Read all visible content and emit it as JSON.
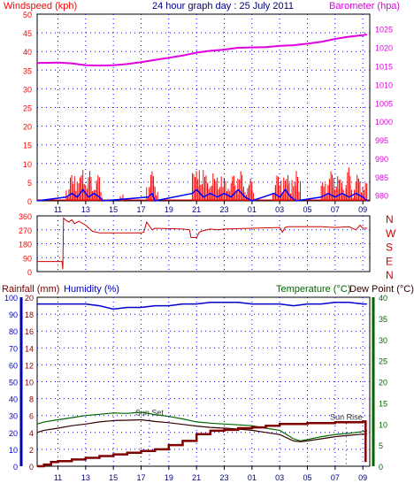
{
  "colors": {
    "wind": "#ff0000",
    "gust_dir": "#cc0000",
    "barometer": "#e000e0",
    "title": "#000080",
    "rain": "#800000",
    "humidity": "#0000cc",
    "temperature": "#006600",
    "dew": "#330000",
    "grid": "#0000ff",
    "dir_letters": "#cc0000",
    "humidity_axis_bar": "#0000aa",
    "temp_axis_bar": "#006600"
  },
  "chart_data": [
    {
      "type": "line",
      "title": "24 hour graph day : 25 July 2011",
      "left_label": "Windspeed (kph)",
      "right_label": "Barometer (hpa)",
      "x_ticks": [
        "11",
        "13",
        "15",
        "17",
        "19",
        "21",
        "23",
        "01",
        "03",
        "05",
        "07",
        "09"
      ],
      "y_left_ticks": [
        0,
        5,
        10,
        15,
        20,
        25,
        30,
        35,
        40,
        45,
        50
      ],
      "ylim_left": [
        0,
        50
      ],
      "y_right_ticks": [
        980,
        985,
        990,
        995,
        1000,
        1005,
        1010,
        1015,
        1020,
        1025
      ],
      "ylim_right": [
        978.5,
        1029
      ],
      "x_range_hours": [
        9.5,
        33.5
      ],
      "grid": true,
      "series": [
        {
          "name": "Barometer (hpa)",
          "axis": "right",
          "x": [
            9.5,
            11,
            12,
            13,
            14,
            15,
            16,
            17,
            18,
            19,
            20,
            21,
            22,
            23,
            24,
            25,
            26,
            27,
            28,
            29,
            30,
            31,
            32,
            33,
            33.3
          ],
          "values": [
            1015.8,
            1015.9,
            1015.7,
            1015.2,
            1015.1,
            1015.2,
            1015.5,
            1016.0,
            1016.6,
            1017.2,
            1017.8,
            1018.6,
            1019.1,
            1019.4,
            1019.9,
            1020.0,
            1020.1,
            1020.4,
            1020.6,
            1021.0,
            1021.5,
            1022.3,
            1022.9,
            1023.3,
            1023.5
          ]
        },
        {
          "name": "Windspeed (kph)",
          "axis": "left",
          "x": [
            9.5,
            11.4,
            11.6,
            11.8,
            12.0,
            12.2,
            12.4,
            12.6,
            12.8,
            13.0,
            13.2,
            13.4,
            13.6,
            13.8,
            14.0,
            14.2,
            15.5,
            15.7,
            17.4,
            17.6,
            17.8,
            18.0,
            18.2,
            20.6,
            20.7,
            20.8,
            21.0,
            21.2,
            21.5,
            21.8,
            22.0,
            22.2,
            22.5,
            22.8,
            23.0,
            23.3,
            23.6,
            24.0,
            24.4,
            24.8,
            25.0,
            25.2,
            26.5,
            26.7,
            26.9,
            27.1,
            27.3,
            27.6,
            27.9,
            28.2,
            28.5,
            30.0,
            30.3,
            30.6,
            30.9,
            31.2,
            31.5,
            31.8,
            32.1,
            32.4,
            32.7,
            33.0,
            33.3
          ],
          "values": [
            0,
            0,
            4,
            7,
            5,
            8,
            6,
            7,
            9,
            5,
            8,
            4,
            6,
            7,
            3,
            0,
            2,
            0,
            5,
            8,
            7,
            4,
            0,
            0,
            15,
            8,
            6,
            9,
            7,
            5,
            8,
            6,
            7,
            4,
            6,
            5,
            7,
            8,
            4,
            6,
            3,
            0,
            4,
            7,
            5,
            8,
            6,
            7,
            5,
            8,
            0,
            5,
            6,
            8,
            7,
            6,
            5,
            9,
            4,
            7,
            6,
            5,
            3
          ]
        },
        {
          "name": "Wind average (kph)",
          "axis": "left",
          "x": [
            9.5,
            11.6,
            12.0,
            12.4,
            12.8,
            13.2,
            13.6,
            14.0,
            14.2,
            17.5,
            17.8,
            18.0,
            20.7,
            21.0,
            21.5,
            22.0,
            22.5,
            23.0,
            23.5,
            24.0,
            24.5,
            25.0,
            26.6,
            27.0,
            27.4,
            27.8,
            28.2,
            30.0,
            30.5,
            31.0,
            31.5,
            32.0,
            32.5,
            33.0,
            33.3
          ],
          "values": [
            0,
            1,
            2,
            1,
            3,
            1,
            2,
            1,
            0,
            1,
            2,
            0,
            2,
            3,
            1,
            2,
            1,
            2,
            1,
            3,
            1,
            0,
            2,
            1,
            3,
            1,
            0,
            1,
            2,
            1,
            2,
            1,
            2,
            1,
            0
          ]
        }
      ]
    },
    {
      "type": "line",
      "title": "",
      "y_ticks": [
        0,
        90,
        180,
        270,
        360
      ],
      "ylim": [
        0,
        360
      ],
      "direction_labels": [
        "N",
        "W",
        "S",
        "E",
        "N"
      ],
      "x_range_hours": [
        9.5,
        33.5
      ],
      "grid": true,
      "series": [
        {
          "name": "Wind direction",
          "x": [
            9.5,
            11.3,
            11.35,
            11.4,
            11.6,
            11.8,
            12.0,
            12.2,
            12.5,
            13.0,
            13.5,
            14.0,
            17.0,
            17.2,
            17.4,
            17.8,
            18.0,
            20.0,
            20.5,
            20.6,
            21.0,
            21.2,
            21.5,
            22.0,
            22.5,
            23.0,
            25.0,
            27.0,
            27.2,
            27.4,
            27.6,
            30.0,
            31.0,
            32.0,
            32.5,
            32.8,
            33.0,
            33.3
          ],
          "values": [
            65,
            65,
            15,
            345,
            330,
            320,
            335,
            310,
            325,
            300,
            260,
            250,
            250,
            255,
            320,
            270,
            280,
            275,
            270,
            220,
            220,
            255,
            265,
            275,
            270,
            275,
            280,
            285,
            255,
            285,
            290,
            290,
            285,
            290,
            270,
            300,
            280,
            280
          ]
        }
      ]
    },
    {
      "type": "line",
      "title": "",
      "left_label_1": "Rainfall (mm)",
      "left_label_2": "Humidity (%)",
      "right_label_1": "Temperature (°C)",
      "right_label_2": "Dew Point (°C)",
      "y_left_rain_ticks": [
        0,
        2,
        4,
        6,
        8,
        10,
        12,
        14,
        16,
        18,
        20
      ],
      "ylim_rain": [
        0,
        20
      ],
      "y_left_humidity_ticks": [
        0,
        10,
        20,
        30,
        40,
        50,
        60,
        70,
        80,
        90,
        100
      ],
      "ylim_humidity": [
        0,
        100
      ],
      "y_right_ticks": [
        0,
        5,
        10,
        15,
        20,
        25,
        30,
        35,
        40
      ],
      "ylim_right": [
        0,
        40
      ],
      "x_ticks": [
        "11",
        "13",
        "15",
        "17",
        "19",
        "21",
        "23",
        "01",
        "03",
        "05",
        "07",
        "09"
      ],
      "x_range_hours": [
        9.5,
        33.5
      ],
      "annotations": [
        {
          "text": "Sun Set",
          "x_hour": 17.6,
          "y_rain": 6.0
        },
        {
          "text": "Sun Rise",
          "x_hour": 31.8,
          "y_rain": 5.5
        }
      ],
      "grid": true,
      "series": [
        {
          "name": "Humidity (%)",
          "axis": "humidity",
          "x": [
            9.5,
            11,
            13,
            14,
            15,
            16,
            17,
            18,
            19,
            20,
            21,
            22,
            23,
            24,
            25,
            26,
            27,
            28,
            29,
            30,
            31,
            32,
            33,
            33.3
          ],
          "values": [
            96,
            96,
            96,
            95,
            93,
            94,
            94,
            95,
            95,
            96,
            96,
            97,
            97,
            97,
            96,
            96,
            96,
            95,
            96,
            96,
            97,
            97,
            96,
            96
          ],
          "color": "#0000cc"
        },
        {
          "name": "Temperature (°C)",
          "axis": "right",
          "x": [
            9.5,
            10,
            11,
            12,
            13,
            14,
            15,
            16,
            17,
            18,
            19,
            20,
            21,
            22,
            23,
            24,
            25,
            26,
            27,
            28,
            28.5,
            29,
            30,
            31,
            32,
            33,
            33.3
          ],
          "values": [
            10,
            10.5,
            11,
            11.5,
            12,
            12.3,
            12.6,
            12.5,
            12.8,
            12.2,
            11.8,
            11.2,
            10.5,
            10.2,
            10.0,
            9.8,
            9.6,
            9.0,
            8.5,
            6.5,
            6.0,
            6.3,
            7.0,
            7.5,
            7.8,
            8.2,
            8.3
          ],
          "color": "#006600"
        },
        {
          "name": "Dew Point (°C)",
          "axis": "right",
          "x": [
            9.5,
            10,
            11,
            12,
            13,
            14,
            15,
            16,
            17,
            18,
            19,
            20,
            21,
            22,
            23,
            24,
            25,
            26,
            27,
            28,
            28.5,
            29,
            30,
            31,
            32,
            33,
            33.3
          ],
          "values": [
            8,
            8.5,
            9,
            9.6,
            10.0,
            10.5,
            10.8,
            10.9,
            11.0,
            10.6,
            10.3,
            9.9,
            9.5,
            9.2,
            9.0,
            8.8,
            8.5,
            8.0,
            7.5,
            6.0,
            5.8,
            6.0,
            6.5,
            7.0,
            7.3,
            7.6,
            7.6
          ],
          "color": "#330000"
        },
        {
          "name": "Rainfall (mm)",
          "axis": "rain",
          "x": [
            9.5,
            10,
            10.5,
            11,
            12,
            13,
            14,
            15,
            16,
            17,
            18,
            19,
            20,
            21,
            22,
            23,
            24,
            25,
            26,
            27,
            28,
            29,
            30,
            31,
            32,
            33,
            33.1,
            33.2
          ],
          "values": [
            0,
            0.2,
            0.5,
            0.6,
            0.8,
            1.0,
            1.2,
            1.4,
            1.6,
            1.8,
            2.0,
            2.5,
            3.0,
            3.8,
            4.2,
            4.3,
            4.5,
            4.6,
            4.8,
            5.0,
            5.0,
            5.1,
            5.1,
            5.2,
            5.2,
            5.3,
            5.3,
            0.5
          ],
          "color": "#800000"
        }
      ]
    }
  ]
}
